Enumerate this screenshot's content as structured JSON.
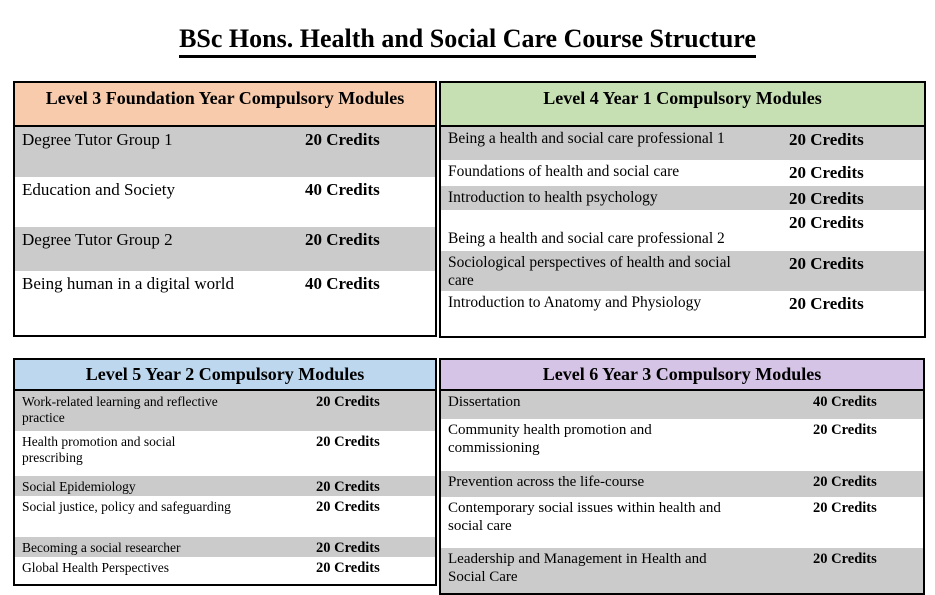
{
  "title": "BSc Hons. Health and Social Care Course Structure",
  "colors": {
    "level3_header": "#F7CBAC",
    "level4_header": "#C6E0B4",
    "level5_header": "#BDD7EE",
    "level6_header": "#D5C4E5",
    "shaded_row": "#CBCBCB"
  },
  "tables": [
    {
      "id": "level3",
      "header": "Level 3 Foundation Year Compulsory Modules",
      "header_color": "#F7CBAC",
      "rows": [
        {
          "module": "Degree Tutor Group 1",
          "credits": "20 Credits",
          "shaded": true
        },
        {
          "module": "Education and Society",
          "credits": "40 Credits",
          "shaded": false
        },
        {
          "module": "Degree Tutor Group 2",
          "credits": "20 Credits",
          "shaded": true
        },
        {
          "module": "Being human in a digital world",
          "credits": "40 Credits",
          "shaded": false
        }
      ]
    },
    {
      "id": "level4",
      "header": "Level 4 Year 1 Compulsory Modules",
      "header_color": "#C6E0B4",
      "rows": [
        {
          "module": "Being a health and social care professional 1",
          "credits": "20 Credits",
          "shaded": true
        },
        {
          "module": "Foundations of health and social care",
          "credits": "20 Credits",
          "shaded": false
        },
        {
          "module": "Introduction to health psychology",
          "credits": "20 Credits",
          "shaded": true
        },
        {
          "module": "Being a health and social care professional 2",
          "credits": "20 Credits",
          "shaded": false
        },
        {
          "module": "Sociological perspectives of health and social\ncare",
          "credits": "20 Credits",
          "shaded": true
        },
        {
          "module": "Introduction to Anatomy and Physiology",
          "credits": "20 Credits",
          "shaded": false
        }
      ]
    },
    {
      "id": "level5",
      "header": "Level 5 Year 2 Compulsory Modules",
      "header_color": "#BDD7EE",
      "rows": [
        {
          "module": "Work-related learning and reflective\npractice",
          "credits": "20 Credits",
          "shaded": true
        },
        {
          "module": "Health promotion and social\nprescribing",
          "credits": "20 Credits",
          "shaded": false
        },
        {
          "module": "Social Epidemiology",
          "credits": "20 Credits",
          "shaded": true
        },
        {
          "module": "Social justice, policy and safeguarding",
          "credits": "20 Credits",
          "shaded": false
        },
        {
          "module": "Becoming a social researcher",
          "credits": "20 Credits",
          "shaded": true
        },
        {
          "module": "Global Health Perspectives",
          "credits": "20 Credits",
          "shaded": false
        }
      ]
    },
    {
      "id": "level6",
      "header": "Level 6 Year 3 Compulsory Modules",
      "header_color": "#D5C4E5",
      "rows": [
        {
          "module": "Dissertation",
          "credits": "40 Credits",
          "shaded": true
        },
        {
          "module": "Community health promotion and\ncommissioning",
          "credits": "20 Credits",
          "shaded": false
        },
        {
          "module": "Prevention across the life-course",
          "credits": "20 Credits",
          "shaded": true
        },
        {
          "module": "Contemporary social issues within health and\nsocial care",
          "credits": "20 Credits",
          "shaded": false
        },
        {
          "module": "Leadership and Management in Health and\nSocial Care",
          "credits": "20 Credits",
          "shaded": true
        }
      ]
    }
  ]
}
